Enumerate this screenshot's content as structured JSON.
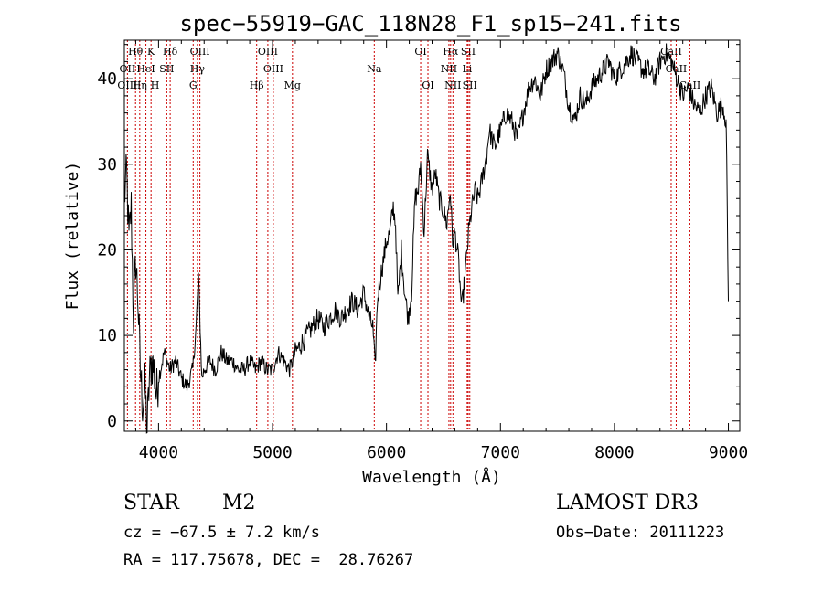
{
  "chart_data": {
    "type": "line",
    "title": "spec−55919−GAC_118N28_F1_sp15−241.fits",
    "xlabel": "Wavelength (Å)",
    "ylabel": "Flux (relative)",
    "xlim": [
      3700,
      9100
    ],
    "ylim": [
      -1.2,
      44.5
    ],
    "xticks": [
      4000,
      5000,
      6000,
      7000,
      8000,
      9000
    ],
    "yticks": [
      0,
      10,
      20,
      30,
      40
    ],
    "line_color": "#000000",
    "marker_color": "#cc0000",
    "series": [
      {
        "x": [
          3700,
          3720,
          3740,
          3760,
          3780,
          3800,
          3820,
          3840,
          3860,
          3880,
          3900,
          3920,
          3940,
          3960,
          3980,
          4000,
          4050,
          4100,
          4150,
          4200,
          4250,
          4300,
          4330,
          4350,
          4380,
          4400,
          4450,
          4500,
          4550,
          4600,
          4650,
          4700,
          4750,
          4800,
          4850,
          4900,
          4950,
          5000,
          5050,
          5100,
          5150,
          5200,
          5250,
          5300,
          5350,
          5400,
          5450,
          5500,
          5550,
          5600,
          5650,
          5700,
          5750,
          5800,
          5850,
          5880,
          5900,
          5920,
          5950,
          6000,
          6030,
          6060,
          6080,
          6100,
          6130,
          6160,
          6190,
          6220,
          6250,
          6280,
          6300,
          6330,
          6360,
          6400,
          6430,
          6460,
          6490,
          6510,
          6530,
          6560,
          6580,
          6600,
          6630,
          6660,
          6690,
          6720,
          6750,
          6780,
          6800,
          6820,
          6850,
          6880,
          6900,
          6950,
          7000,
          7050,
          7100,
          7150,
          7200,
          7250,
          7300,
          7350,
          7400,
          7450,
          7500,
          7550,
          7600,
          7650,
          7700,
          7750,
          7800,
          7850,
          7900,
          7950,
          8000,
          8050,
          8100,
          8150,
          8200,
          8250,
          8300,
          8350,
          8400,
          8450,
          8500,
          8550,
          8600,
          8650,
          8700,
          8750,
          8800,
          8850,
          8900,
          8950,
          8980,
          9000
        ],
        "y": [
          26,
          29,
          21,
          25,
          12,
          19,
          14,
          6,
          2,
          4,
          -1,
          5,
          7,
          6,
          3,
          5,
          8,
          6,
          7,
          5,
          4,
          6,
          11,
          17,
          5,
          6,
          7,
          6,
          8,
          7,
          7,
          6,
          6,
          7,
          6,
          7,
          6,
          6,
          8,
          7,
          6,
          8,
          9,
          10,
          11,
          12,
          11,
          12,
          13,
          12,
          13,
          14,
          13,
          15,
          12,
          11,
          6,
          14,
          17,
          21,
          22,
          25,
          23,
          14,
          20,
          15,
          12,
          15,
          26,
          27,
          30,
          22,
          31,
          27,
          29,
          26,
          25,
          24,
          23,
          27,
          21,
          22,
          19,
          13,
          17,
          22,
          25,
          27,
          26,
          27,
          29,
          31,
          34,
          32,
          34,
          36,
          35,
          33,
          36,
          39,
          40,
          38,
          41,
          42,
          43,
          41,
          37,
          35,
          38,
          37,
          39,
          40,
          41,
          42,
          40,
          41,
          42,
          43,
          42,
          41,
          41,
          40,
          42,
          43,
          42,
          40,
          38,
          39,
          37,
          36,
          38,
          39,
          36,
          37,
          35,
          14
        ]
      }
    ],
    "lines": [
      {
        "name": "Hθ",
        "wavelength": 3798,
        "row": 1
      },
      {
        "name": "K",
        "wavelength": 3934,
        "row": 1
      },
      {
        "name": "Hδ",
        "wavelength": 4102,
        "row": 1
      },
      {
        "name": "OIII",
        "wavelength": 4363,
        "row": 1
      },
      {
        "name": "OIII",
        "wavelength": 4959,
        "row": 1
      },
      {
        "name": "OI",
        "wavelength": 6300,
        "row": 1
      },
      {
        "name": "Hα",
        "wavelength": 6563,
        "row": 1
      },
      {
        "name": "SII",
        "wavelength": 6717,
        "row": 1
      },
      {
        "name": "CaII",
        "wavelength": 8498,
        "row": 1
      },
      {
        "name": "OII",
        "wavelength": 3727,
        "row": 2
      },
      {
        "name": "HeI",
        "wavelength": 3889,
        "row": 2
      },
      {
        "name": "SII",
        "wavelength": 4072,
        "row": 2
      },
      {
        "name": "Hγ",
        "wavelength": 4341,
        "row": 2
      },
      {
        "name": "OIII",
        "wavelength": 5007,
        "row": 2
      },
      {
        "name": "Na",
        "wavelength": 5893,
        "row": 2
      },
      {
        "name": "NII",
        "wavelength": 6548,
        "row": 2
      },
      {
        "name": "Li",
        "wavelength": 6708,
        "row": 2
      },
      {
        "name": "CaII",
        "wavelength": 8542,
        "row": 2
      },
      {
        "name": "OIII",
        "wavelength": 3727,
        "row": 3
      },
      {
        "name": "Hη",
        "wavelength": 3835,
        "row": 3
      },
      {
        "name": "H",
        "wavelength": 3969,
        "row": 3
      },
      {
        "name": "G",
        "wavelength": 4304,
        "row": 3
      },
      {
        "name": "Hβ",
        "wavelength": 4861,
        "row": 3
      },
      {
        "name": "Mg",
        "wavelength": 5175,
        "row": 3
      },
      {
        "name": "OI",
        "wavelength": 6364,
        "row": 3
      },
      {
        "name": "NII",
        "wavelength": 6583,
        "row": 3
      },
      {
        "name": "SII",
        "wavelength": 6731,
        "row": 3
      },
      {
        "name": "CaII",
        "wavelength": 8662,
        "row": 3
      }
    ]
  },
  "info": {
    "class": "STAR",
    "subclass": "M2",
    "survey": "LAMOST DR3",
    "cz": "cz = −67.5 ± 7.2 km/s",
    "obs_date": "Obs−Date: 20111223",
    "coords": "RA = 117.75678, DEC =  28.76267"
  }
}
